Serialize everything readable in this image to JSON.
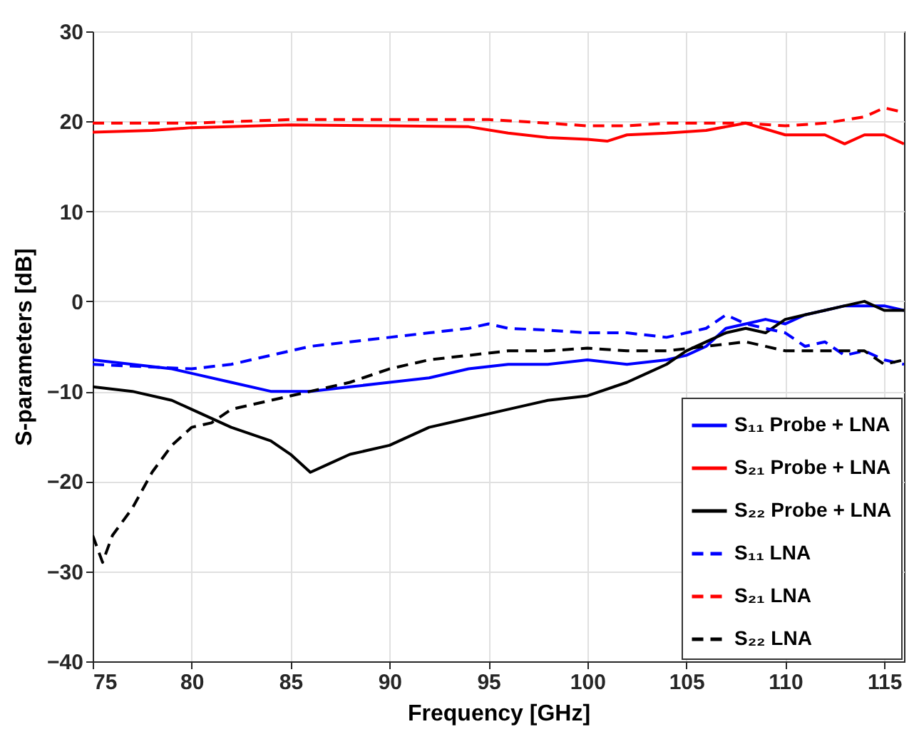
{
  "chart_data": {
    "type": "line",
    "xlabel": "Frequency [GHz]",
    "ylabel": "S-parameters [dB]",
    "xlim": [
      75,
      116
    ],
    "ylim": [
      -40,
      30
    ],
    "xticks": [
      75,
      80,
      85,
      90,
      95,
      100,
      105,
      110,
      115
    ],
    "yticks": [
      -40,
      -30,
      -20,
      -10,
      0,
      10,
      20,
      30
    ],
    "grid": true,
    "legend": "bottom right",
    "marker": "none",
    "series": [
      {
        "name": "S₁₁ Probe + LNA",
        "color": "#0000ff",
        "line_style": "solid",
        "x": [
          75,
          77,
          79,
          80,
          82,
          84,
          86,
          88,
          90,
          92,
          94,
          96,
          98,
          100,
          102,
          104,
          105,
          106,
          107,
          108,
          109,
          110,
          111,
          112,
          113,
          114,
          115,
          116
        ],
        "values": [
          -6.5,
          -7,
          -7.5,
          -8,
          -9,
          -10,
          -10,
          -9.5,
          -9,
          -8.5,
          -7.5,
          -7,
          -7,
          -6.5,
          -7,
          -6.5,
          -6,
          -5,
          -3,
          -2.5,
          -2,
          -2.5,
          -1.5,
          -1,
          -0.5,
          -0.5,
          -0.5,
          -1
        ]
      },
      {
        "name": "S₂₁ Probe + LNA",
        "color": "#ff0000",
        "line_style": "solid",
        "x": [
          75,
          78,
          80,
          85,
          90,
          94,
          96,
          98,
          100,
          101,
          102,
          104,
          106,
          108,
          110,
          112,
          113,
          114,
          115,
          116
        ],
        "values": [
          18.8,
          19,
          19.3,
          19.6,
          19.5,
          19.4,
          18.7,
          18.2,
          18,
          17.8,
          18.5,
          18.7,
          19,
          19.8,
          18.5,
          18.5,
          17.5,
          18.5,
          18.5,
          17.5
        ]
      },
      {
        "name": "S₂₂ Probe + LNA",
        "color": "#000000",
        "line_style": "solid",
        "x": [
          75,
          77,
          79,
          80,
          82,
          84,
          85,
          86,
          87,
          88,
          90,
          92,
          94,
          96,
          98,
          100,
          102,
          103,
          104,
          105,
          106,
          107,
          108,
          109,
          110,
          111,
          112,
          113,
          114,
          115,
          116
        ],
        "values": [
          -9.5,
          -10,
          -11,
          -12,
          -14,
          -15.5,
          -17,
          -19,
          -18,
          -17,
          -16,
          -14,
          -13,
          -12,
          -11,
          -10.5,
          -9,
          -8,
          -7,
          -5.5,
          -4.5,
          -3.5,
          -3,
          -3.5,
          -2,
          -1.5,
          -1,
          -0.5,
          0,
          -1,
          -1
        ]
      },
      {
        "name": "S₁₁ LNA",
        "color": "#0000ff",
        "line_style": "dashed",
        "x": [
          75,
          80,
          82,
          84,
          86,
          88,
          90,
          92,
          94,
          95,
          96,
          98,
          100,
          102,
          104,
          105,
          106,
          107,
          108,
          109,
          110,
          111,
          112,
          113,
          114,
          115,
          116
        ],
        "values": [
          -7,
          -7.5,
          -7,
          -6,
          -5,
          -4.5,
          -4,
          -3.5,
          -3,
          -2.5,
          -3,
          -3.2,
          -3.5,
          -3.5,
          -4,
          -3.5,
          -3,
          -1.5,
          -2.5,
          -3,
          -3.5,
          -5,
          -4.5,
          -6,
          -5.5,
          -6.5,
          -7
        ]
      },
      {
        "name": "S₂₁ LNA",
        "color": "#ff0000",
        "line_style": "dashed",
        "x": [
          75,
          80,
          85,
          90,
          95,
          98,
          100,
          102,
          104,
          106,
          108,
          110,
          112,
          114,
          115,
          116
        ],
        "values": [
          19.8,
          19.8,
          20.2,
          20.2,
          20.2,
          19.8,
          19.5,
          19.5,
          19.8,
          19.8,
          19.8,
          19.5,
          19.8,
          20.5,
          21.5,
          21
        ]
      },
      {
        "name": "S₂₂ LNA",
        "color": "#000000",
        "line_style": "dashed",
        "x": [
          75,
          75.5,
          76,
          77,
          78,
          79,
          80,
          81,
          82,
          84,
          86,
          88,
          90,
          92,
          94,
          96,
          98,
          100,
          102,
          104,
          106,
          108,
          110,
          112,
          114,
          115,
          116
        ],
        "values": [
          -26,
          -29,
          -26,
          -23,
          -19,
          -16,
          -14,
          -13.5,
          -12,
          -11,
          -10,
          -9,
          -7.5,
          -6.5,
          -6,
          -5.5,
          -5.5,
          -5.2,
          -5.5,
          -5.5,
          -5,
          -4.5,
          -5.5,
          -5.5,
          -5.5,
          -7,
          -6.5
        ]
      }
    ]
  }
}
